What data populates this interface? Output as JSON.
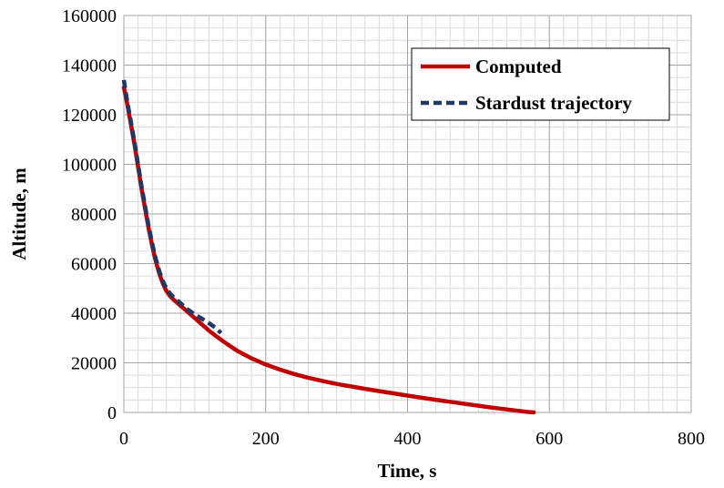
{
  "chart_data": {
    "type": "line",
    "title": "",
    "xlabel": "Time, s",
    "ylabel": "Altitude, m",
    "xlim": [
      0,
      800
    ],
    "ylim": [
      0,
      160000
    ],
    "x_ticks": [
      "0",
      "200",
      "400",
      "600",
      "800"
    ],
    "y_ticks": [
      "0",
      "20000",
      "40000",
      "60000",
      "80000",
      "100000",
      "120000",
      "140000",
      "160000"
    ],
    "grid": true,
    "legend_position": "top-right",
    "series": [
      {
        "name": "Computed",
        "color": "#c00000",
        "style": "solid",
        "x": [
          0,
          5,
          10,
          15,
          20,
          25,
          30,
          35,
          40,
          45,
          50,
          55,
          60,
          65,
          70,
          80,
          90,
          100,
          110,
          120,
          130,
          140,
          150,
          160,
          180,
          200,
          220,
          240,
          260,
          280,
          300,
          320,
          340,
          360,
          380,
          400,
          420,
          440,
          460,
          480,
          500,
          520,
          540,
          560,
          570,
          578
        ],
        "y": [
          131000,
          124000,
          116000,
          108000,
          99000,
          90000,
          82000,
          74000,
          67000,
          61000,
          56000,
          52000,
          49000,
          47000,
          45500,
          43000,
          40500,
          38000,
          35500,
          33000,
          30800,
          28700,
          26700,
          24800,
          21800,
          19300,
          17300,
          15500,
          14000,
          12700,
          11500,
          10500,
          9500,
          8600,
          7700,
          6800,
          5900,
          5100,
          4300,
          3500,
          2700,
          1900,
          1200,
          500,
          200,
          0
        ]
      },
      {
        "name": "Stardust trajectory",
        "color": "#1f3864",
        "style": "dashed",
        "x": [
          0,
          2,
          5,
          10,
          15,
          20,
          25,
          30,
          35,
          40,
          45,
          50,
          55,
          60,
          65,
          70,
          80,
          90,
          100,
          110,
          120,
          130,
          137
        ],
        "y": [
          134000,
          130000,
          125000,
          117000,
          109000,
          100000,
          91000,
          83000,
          75000,
          68000,
          62000,
          57000,
          53000,
          50000,
          48000,
          46500,
          44000,
          41500,
          39500,
          37800,
          36000,
          34000,
          32000
        ]
      }
    ]
  }
}
